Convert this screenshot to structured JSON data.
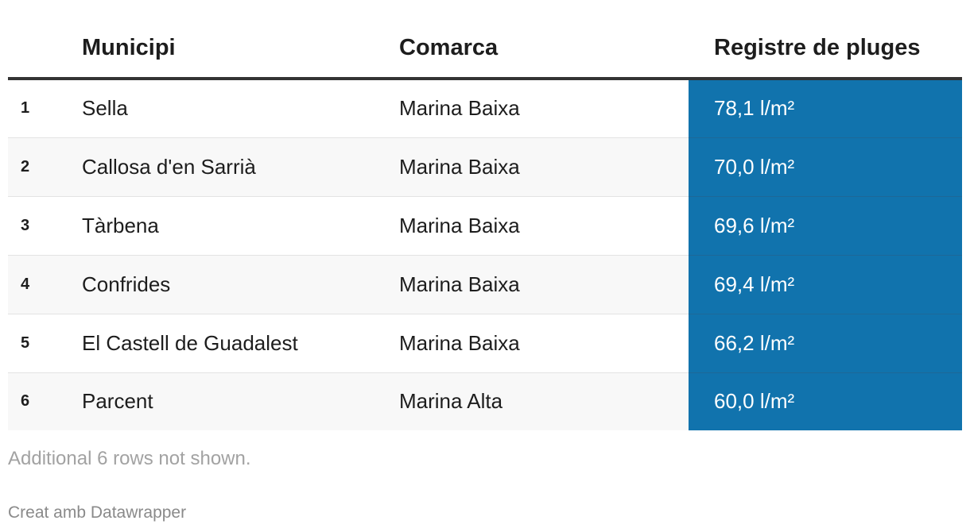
{
  "chart_data": {
    "type": "table",
    "columns": [
      "",
      "Municipi",
      "Comarca",
      "Registre de pluges"
    ],
    "rows": [
      {
        "rank": "1",
        "municipi": "Sella",
        "comarca": "Marina Baixa",
        "registre": "78,1 l/m²",
        "value": 78.1
      },
      {
        "rank": "2",
        "municipi": "Callosa d'en Sarrià",
        "comarca": "Marina Baixa",
        "registre": "70,0 l/m²",
        "value": 70.0
      },
      {
        "rank": "3",
        "municipi": "Tàrbena",
        "comarca": "Marina Baixa",
        "registre": "69,6 l/m²",
        "value": 69.6
      },
      {
        "rank": "4",
        "municipi": "Confrides",
        "comarca": "Marina Baixa",
        "registre": "69,4 l/m²",
        "value": 69.4
      },
      {
        "rank": "5",
        "municipi": "El Castell de Guadalest",
        "comarca": "Marina Baixa",
        "registre": "66,2 l/m²",
        "value": 66.2
      },
      {
        "rank": "6",
        "municipi": "Parcent",
        "comarca": "Marina Alta",
        "registre": "60,0 l/m²",
        "value": 60.0
      }
    ],
    "highlight_color": "#1173ad"
  },
  "footer": {
    "note": "Additional 6 rows not shown.",
    "credit": "Creat amb Datawrapper"
  }
}
